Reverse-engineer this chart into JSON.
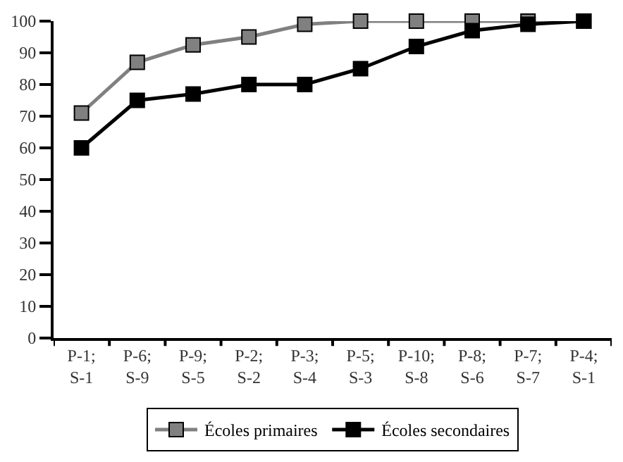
{
  "chart_data": {
    "type": "line",
    "categories": [
      "P-1;\nS-1",
      "P-6;\nS-9",
      "P-9;\nS-5",
      "P-2;\nS-2",
      "P-3;\nS-4",
      "P-5;\nS-3",
      "P-10;\nS-8",
      "P-8;\nS-6",
      "P-7;\nS-7",
      "P-4;\nS-1"
    ],
    "series": [
      {
        "name": "Écoles primaires",
        "color": "#808080",
        "values": [
          71,
          87,
          92.5,
          95,
          99,
          100,
          100,
          100,
          100,
          100
        ]
      },
      {
        "name": "Écoles secondaires",
        "color": "#000000",
        "values": [
          60,
          75,
          77,
          80,
          80,
          85,
          92,
          97,
          99,
          100
        ]
      }
    ],
    "ylim": [
      0,
      100
    ],
    "yticks": [
      0,
      10,
      20,
      30,
      40,
      50,
      60,
      70,
      80,
      90,
      100
    ],
    "legend": "bottom",
    "marker": "square",
    "line_style": "solid"
  }
}
